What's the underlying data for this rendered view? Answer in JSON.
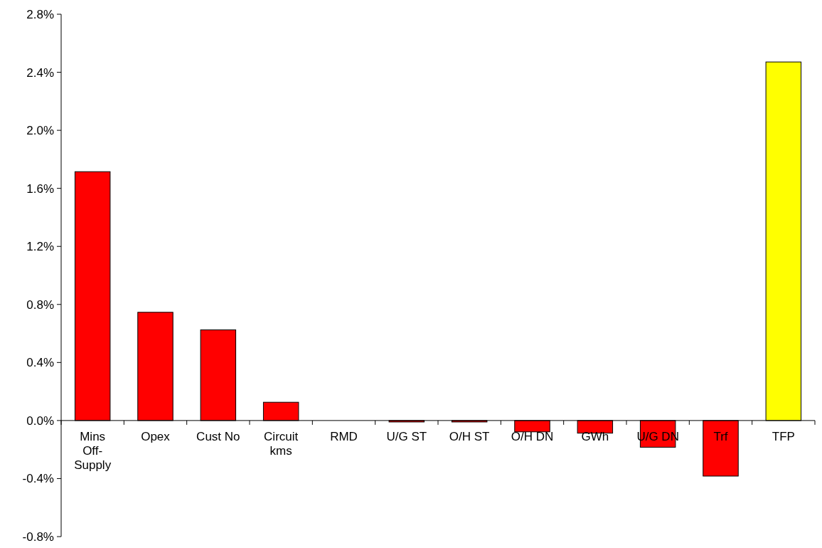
{
  "chart_data": {
    "type": "bar",
    "categories": [
      "Mins Off-Supply",
      "Opex",
      "Cust No",
      "Circuit kms",
      "RMD",
      "U/G ST",
      "O/H ST",
      "O/H DN",
      "GWh",
      "U/G DN",
      "Trf",
      "TFP"
    ],
    "values": [
      1.715,
      0.746,
      0.625,
      0.126,
      0,
      -0.01,
      -0.01,
      -0.078,
      -0.087,
      -0.184,
      -0.383,
      2.471
    ],
    "colors": [
      "#ff0000",
      "#ff0000",
      "#ff0000",
      "#ff0000",
      "#ff0000",
      "#ff0000",
      "#ff0000",
      "#ff0000",
      "#ff0000",
      "#ff0000",
      "#ff0000",
      "#ffff00"
    ],
    "ylim": [
      -0.8,
      2.8
    ],
    "yticks": [
      {
        "value": -0.8,
        "label": "-0.8%"
      },
      {
        "value": -0.4,
        "label": "-0.4%"
      },
      {
        "value": 0,
        "label": "0.0%"
      },
      {
        "value": 0.4,
        "label": "0.4%"
      },
      {
        "value": 0.8,
        "label": "0.8%"
      },
      {
        "value": 1.2,
        "label": "1.2%"
      },
      {
        "value": 1.6,
        "label": "1.6%"
      },
      {
        "value": 2.0,
        "label": "2.0%"
      },
      {
        "value": 2.4,
        "label": "2.4%"
      },
      {
        "value": 2.8,
        "label": "2.8%"
      }
    ],
    "grid": false
  }
}
